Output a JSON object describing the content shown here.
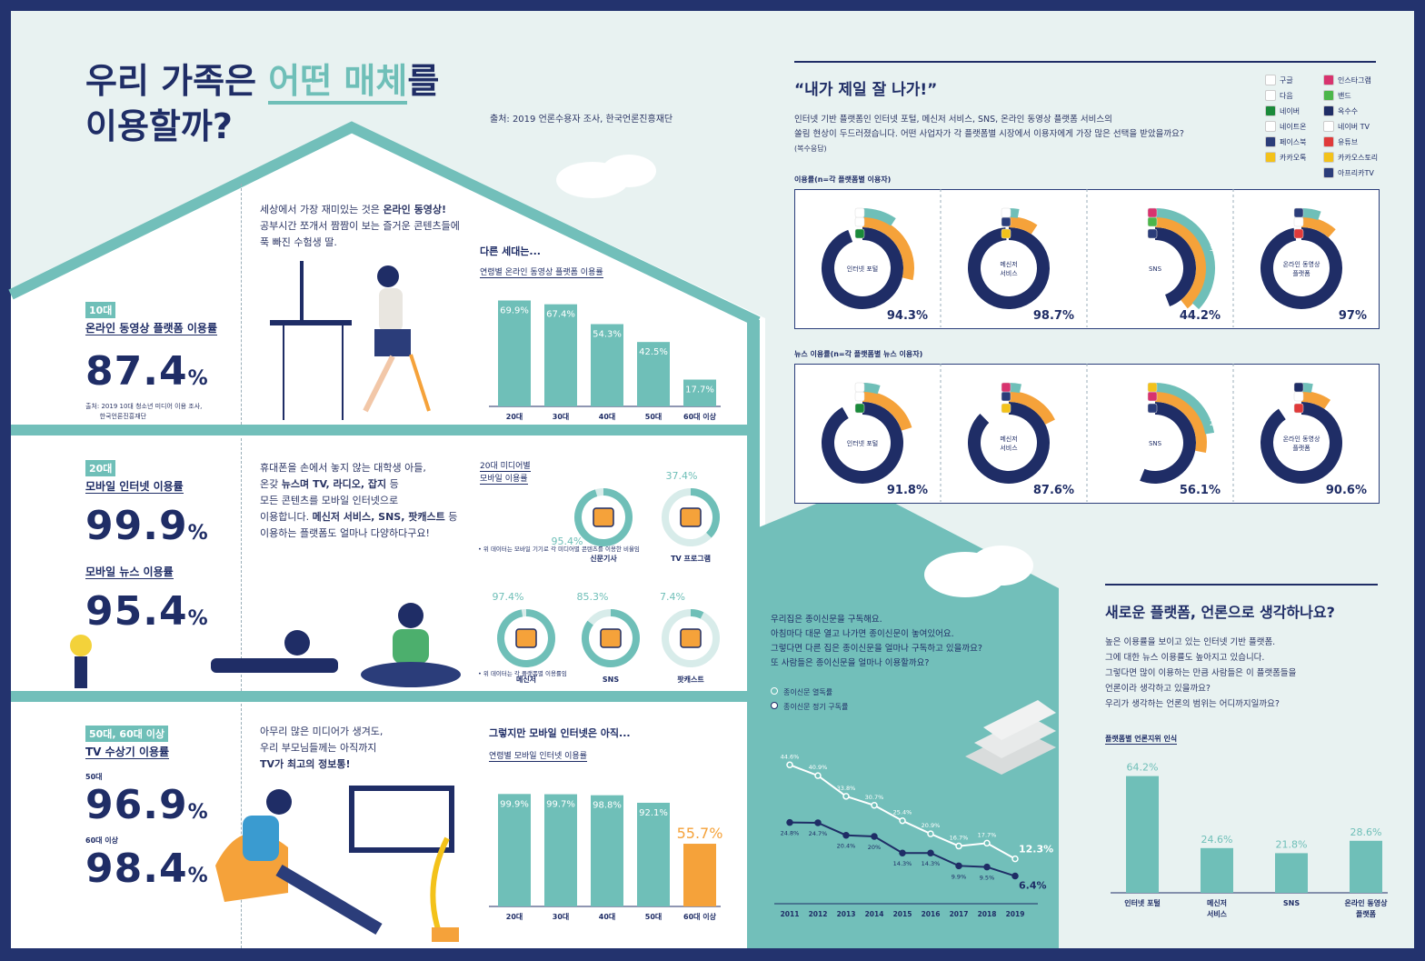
{
  "header": {
    "title_part1": "우리 가족은 ",
    "title_highlight": "어떤 매체",
    "title_part2": "를",
    "title_line2": "이용할까?",
    "source": "출처: 2019 언론수용자 조사, 한국언론진흥재단"
  },
  "teen": {
    "tag": "10대",
    "label": "온라인 동영상 플랫폼 이용률",
    "value": "87.4",
    "unit": "%",
    "source_line1": "출처: 2019 10대 청소년 미디어 이용 조사,",
    "source_line2": "한국언론진흥재단",
    "desc_line1_a": "세상에서 가장 재미있는 것은 ",
    "desc_line1_b": "온라인 동영상!",
    "desc_line2": "공부시간 쪼개서 짬짬이 보는 즐거운 콘텐츠들에",
    "desc_line3": "푹 빠진 수험생 딸."
  },
  "twenties": {
    "tag": "20대",
    "label1": "모바일 인터넷 이용률",
    "value1": "99.9",
    "label2": "모바일 뉴스 이용률",
    "value2": "95.4",
    "unit": "%",
    "desc_line1": "휴대폰을 손에서 놓지 않는 대학생 아들,",
    "desc_line2_a": "온갖 ",
    "desc_line2_b": "뉴스며 TV, 라디오, 잡지",
    "desc_line2_c": " 등",
    "desc_line3": "모든 콘텐츠를 모바일 인터넷으로",
    "desc_line4_a": "이용합니다. ",
    "desc_line4_b": "메신저 서비스, SNS, 팟캐스트",
    "desc_line4_c": " 등",
    "desc_line5": "이용하는 플랫폼도 얼마나 다양하다구요!",
    "media_title_line1": "20대 미디어별",
    "media_title_line2": "모바일 이용률",
    "note1": "• 위 데이터는 모바일 기기로 각 미디어별 콘텐츠를 이용한 비율임",
    "note2": "• 위 데이터는 각 플랫폼별 이용률임"
  },
  "elders": {
    "tag": "50대, 60대 이상",
    "label": "TV 수상기 이용률",
    "sub1": "50대",
    "value1": "96.9",
    "sub2": "60대 이상",
    "value2": "98.4",
    "unit": "%",
    "desc_line1": "아무리 많은 미디어가 생겨도,",
    "desc_line2": "우리 부모님들께는 아직까지",
    "desc_line3": "TV가 최고의 정보통!"
  },
  "platform": {
    "title": "“내가 제일 잘 나가!”",
    "desc_line1": "인터넷 기반 플랫폼인 인터넷 포털, 메신저 서비스, SNS, 온라인 동영상 플랫폼 서비스의",
    "desc_line2": "쏠림 현상이 두드러졌습니다. 어떤 사업자가 각 플랫폼별 시장에서 이용자에게 가장 많은 선택을 받았을까요?",
    "desc_line3": "(복수응답)",
    "usage_title": "이용률(n=각 플랫폼별 이용자)",
    "news_title": "뉴스 이용률(n=각 플랫폼별 뉴스 이용자)",
    "legend": [
      {
        "label": "구글",
        "icon": "google-icon",
        "color": "#ffffff"
      },
      {
        "label": "다음",
        "icon": "daum-icon",
        "color": "#ffffff"
      },
      {
        "label": "네이버",
        "icon": "naver-icon",
        "color": "#1a8a3a"
      },
      {
        "label": "네이트온",
        "icon": "nateon-icon",
        "color": "#ffffff"
      },
      {
        "label": "페이스북",
        "icon": "facebook-icon",
        "color": "#2b3d7a"
      },
      {
        "label": "카카오톡",
        "icon": "kakaotalk-icon",
        "color": "#f3c21a"
      },
      {
        "label": "인스타그램",
        "icon": "instagram-icon",
        "color": "#d8336e"
      },
      {
        "label": "밴드",
        "icon": "band-icon",
        "color": "#4cb64a"
      },
      {
        "label": "옥수수",
        "icon": "oksusu-icon",
        "color": "#1f2d66"
      },
      {
        "label": "네이버 TV",
        "icon": "navertv-icon",
        "color": "#ffffff"
      },
      {
        "label": "유튜브",
        "icon": "youtube-icon",
        "color": "#e03a3a"
      },
      {
        "label": "카카오스토리",
        "icon": "kakaostory-icon",
        "color": "#f3c21a"
      },
      {
        "label": "아프리카TV",
        "icon": "afreecatv-icon",
        "color": "#2b3d7a"
      }
    ]
  },
  "newspaper": {
    "desc_line1": "우리집은 종이신문을 구독해요.",
    "desc_line2": "아침마다 대문 열고 나가면 종이신문이 놓여있어요.",
    "desc_line3": "그렇다면 다른 집은 종이신문을 얼마나 구독하고 있을까요?",
    "desc_line4": "또 사람들은 종이신문을 얼마나 이용할까요?"
  },
  "opinion": {
    "title": "새로운 플랫폼, 언론으로 생각하나요?",
    "desc_line1": "높은 이용률을 보이고 있는 인터넷 기반 플랫폼.",
    "desc_line2": "그에 대한 뉴스 이용률도 높아지고 있습니다.",
    "desc_line3": "그렇다면 많이 이용하는 만큼 사람들은 이 플랫폼들을",
    "desc_line4": "언론이라 생각하고 있을까요?",
    "desc_line5": "우리가 생각하는 언론의 범위는 어디까지일까요?",
    "chart_title": "플랫폼별 언론지위 인식"
  },
  "chart_data": [
    {
      "id": "teen_video",
      "type": "bar",
      "title": "다른 세대는...",
      "subtitle": "연령별 온라인 동영상 플랫폼 이용률",
      "categories": [
        "20대",
        "30대",
        "40대",
        "50대",
        "60대 이상"
      ],
      "values": [
        69.9,
        67.4,
        54.3,
        42.5,
        17.7
      ],
      "ylim": [
        0,
        75
      ],
      "color": "#6fbfb8"
    },
    {
      "id": "mobile_media",
      "type": "donut",
      "series": [
        {
          "name": "신문기사",
          "value": 95.4
        },
        {
          "name": "TV 프로그램",
          "value": 37.4
        },
        {
          "name": "메신저",
          "value": 97.4
        },
        {
          "name": "SNS",
          "value": 85.3
        },
        {
          "name": "팟캐스트",
          "value": 7.4
        }
      ]
    },
    {
      "id": "mobile_internet",
      "type": "bar",
      "title": "그렇지만 모바일 인터넷은 아직...",
      "subtitle": "연령별 모바일 인터넷 이용률",
      "categories": [
        "20대",
        "30대",
        "40대",
        "50대",
        "60대 이상"
      ],
      "values": [
        99.9,
        99.7,
        98.8,
        92.1,
        55.7
      ],
      "ylim": [
        0,
        105
      ],
      "colors": [
        "#6fbfb8",
        "#6fbfb8",
        "#6fbfb8",
        "#6fbfb8",
        "#f5a23a"
      ]
    },
    {
      "id": "platform_usage",
      "type": "donut",
      "groups": [
        {
          "name": "인터넷 포털",
          "total": 94.3,
          "rings": [
            {
              "icon": "naver-icon",
              "value": 94.3
            },
            {
              "icon": "daum-icon",
              "value": 28.7
            },
            {
              "icon": "google-icon",
              "value": 9.4
            }
          ]
        },
        {
          "name": "메신저 서비스",
          "total": 98.7,
          "rings": [
            {
              "icon": "kakaotalk-icon",
              "value": 98.7
            },
            {
              "icon": "facebook-icon",
              "value": 9.3
            },
            {
              "icon": "nateon-icon",
              "value": 2.8
            }
          ]
        },
        {
          "name": "SNS",
          "total": 44.2,
          "rings": [
            {
              "icon": "facebook-icon",
              "value": 44.2
            },
            {
              "icon": "band-icon",
              "value": 39.2
            },
            {
              "icon": "instagram-icon",
              "value": 37.0
            }
          ]
        },
        {
          "name": "온라인 동영상 플랫폼",
          "total": 97.0,
          "rings": [
            {
              "icon": "youtube-icon",
              "value": 97.0
            },
            {
              "icon": "navertv-icon",
              "value": 11.5
            },
            {
              "icon": "afreecatv-icon",
              "value": 5.3
            }
          ]
        }
      ]
    },
    {
      "id": "platform_news",
      "type": "donut",
      "groups": [
        {
          "name": "인터넷 포털",
          "total": 91.8,
          "rings": [
            {
              "icon": "naver-icon",
              "value": 91.8
            },
            {
              "icon": "daum-icon",
              "value": 20.2
            },
            {
              "icon": "google-icon",
              "value": 4.8
            }
          ]
        },
        {
          "name": "메신저 서비스",
          "total": 87.6,
          "rings": [
            {
              "icon": "kakaotalk-icon",
              "value": 87.6
            },
            {
              "icon": "facebook-icon",
              "value": 17.6
            },
            {
              "icon": "instagram-icon",
              "value": 3.4
            }
          ]
        },
        {
          "name": "SNS",
          "total": 56.1,
          "rings": [
            {
              "icon": "facebook-icon",
              "value": 56.1
            },
            {
              "icon": "instagram-icon",
              "value": 28.1
            },
            {
              "icon": "kakaostory-icon",
              "value": 22.3
            }
          ]
        },
        {
          "name": "온라인 동영상 플랫폼",
          "total": 90.6,
          "rings": [
            {
              "icon": "youtube-icon",
              "value": 90.6
            },
            {
              "icon": "navertv-icon",
              "value": 9.5
            },
            {
              "icon": "oksusu-icon",
              "value": 3.1
            }
          ]
        }
      ]
    },
    {
      "id": "newspaper",
      "type": "line",
      "x": [
        "2011",
        "2012",
        "2013",
        "2014",
        "2015",
        "2016",
        "2017",
        "2018",
        "2019"
      ],
      "series": [
        {
          "name": "종이신문 열독률",
          "values": [
            44.6,
            40.9,
            33.8,
            30.7,
            25.4,
            20.9,
            16.7,
            17.7,
            12.3
          ]
        },
        {
          "name": "종이신문 정기 구독률",
          "values": [
            24.8,
            24.7,
            20.4,
            20.0,
            14.3,
            14.3,
            9.9,
            9.5,
            6.4
          ]
        }
      ],
      "ylim": [
        0,
        50
      ]
    },
    {
      "id": "press_status",
      "type": "bar",
      "categories": [
        "인터넷 포털",
        "메신저 서비스",
        "SNS",
        "온라인 동영상 플랫폼"
      ],
      "values": [
        64.2,
        24.6,
        21.8,
        28.6
      ],
      "ylim": [
        0,
        70
      ],
      "color": "#6fbfb8"
    }
  ]
}
